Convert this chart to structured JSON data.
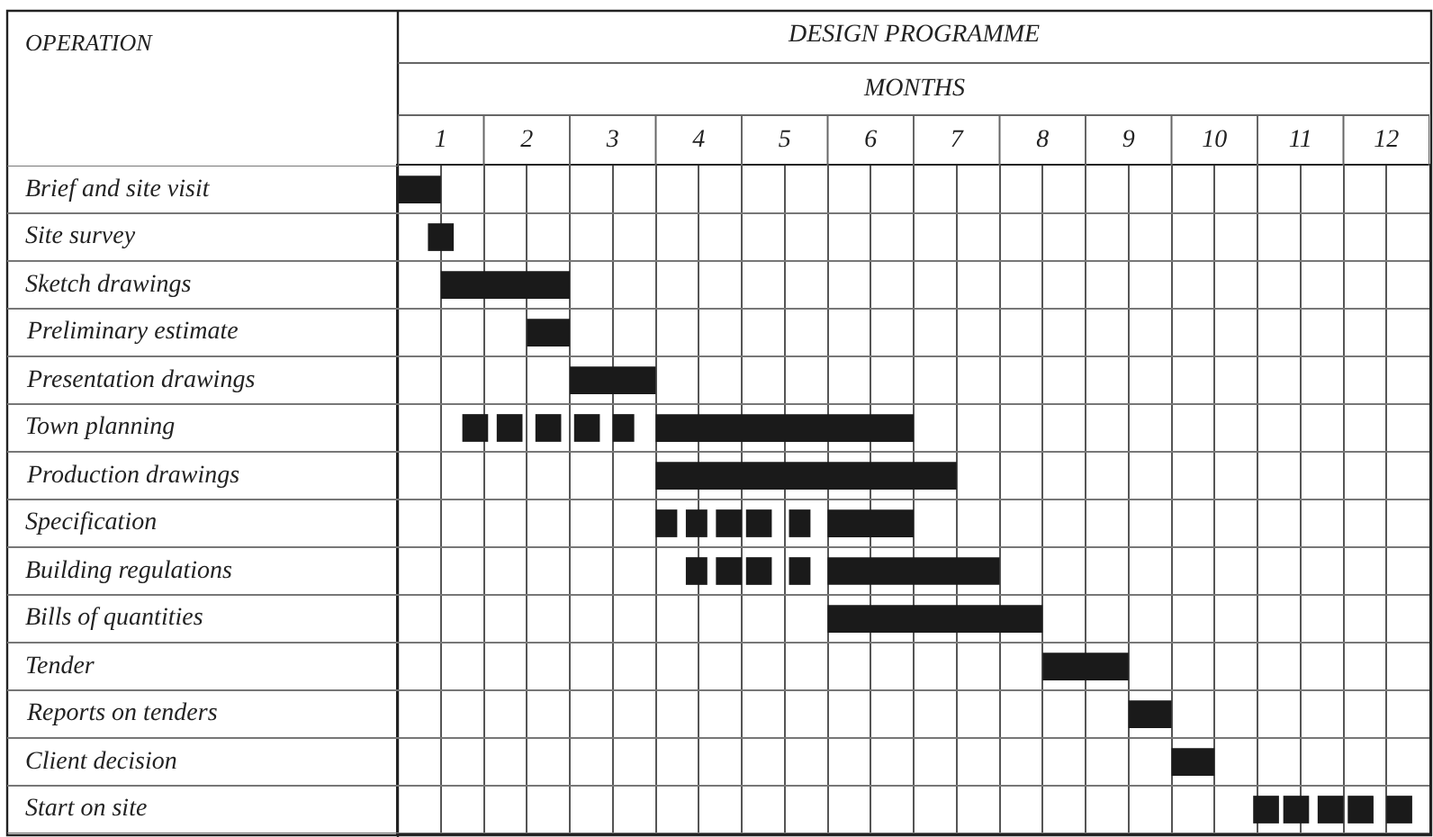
{
  "chart_data": {
    "type": "bar",
    "orientation": "horizontal",
    "title": "DESIGN PROGRAMME",
    "xlabel": "MONTHS",
    "ylabel": "OPERATION",
    "categories": [
      "Brief and site visit",
      "Site survey",
      "Sketch drawings",
      "Preliminary estimate",
      "Presentation drawings",
      "Town planning",
      "Production drawings",
      "Specification",
      "Building regulations",
      "Bills of quantities",
      "Tender",
      "Reports on tenders",
      "Client decision",
      "Start on site"
    ],
    "series": [
      {
        "color": "#1a1a1a",
        "base": [
          0,
          0.35,
          0.5,
          1.5,
          2,
          0.75,
          3,
          3,
          3.35,
          5,
          7.5,
          8.5,
          9,
          9.95
        ],
        "values": [
          0.5,
          0.3,
          1.5,
          0.5,
          1,
          0.3,
          3.5,
          0.25,
          0.25,
          2.5,
          1,
          0.5,
          0.5,
          0.3
        ]
      },
      {
        "color": "#1a1a1a",
        "base": [
          null,
          null,
          null,
          null,
          null,
          1.15,
          null,
          3.35,
          3.7,
          null,
          null,
          null,
          null,
          10.3
        ],
        "values": [
          null,
          null,
          null,
          null,
          null,
          0.3,
          null,
          0.25,
          0.3,
          null,
          null,
          null,
          null,
          0.3
        ]
      },
      {
        "color": "#1a1a1a",
        "base": [
          null,
          null,
          null,
          null,
          null,
          1.6,
          null,
          3.7,
          4.05,
          null,
          null,
          null,
          null,
          10.7
        ],
        "values": [
          null,
          null,
          null,
          null,
          null,
          0.3,
          null,
          0.3,
          0.3,
          null,
          null,
          null,
          null,
          0.3
        ]
      },
      {
        "color": "#1a1a1a",
        "base": [
          null,
          null,
          null,
          null,
          null,
          2.05,
          null,
          4.05,
          4.55,
          null,
          null,
          null,
          null,
          11.05
        ],
        "values": [
          null,
          null,
          null,
          null,
          null,
          0.3,
          null,
          0.3,
          0.25,
          null,
          null,
          null,
          null,
          0.3
        ]
      },
      {
        "color": "#1a1a1a",
        "base": [
          null,
          null,
          null,
          null,
          null,
          2.5,
          null,
          4.55,
          5,
          null,
          null,
          null,
          null,
          11.5
        ],
        "values": [
          null,
          null,
          null,
          null,
          null,
          0.25,
          null,
          0.25,
          2,
          null,
          null,
          null,
          null,
          0.3
        ]
      },
      {
        "color": "#1a1a1a",
        "base": [
          null,
          null,
          null,
          null,
          null,
          3,
          null,
          5,
          null,
          null,
          null,
          null,
          null,
          null
        ],
        "values": [
          null,
          null,
          null,
          null,
          null,
          3,
          null,
          1,
          null,
          null,
          null,
          null,
          null,
          null
        ]
      }
    ],
    "xlim": [
      0,
      12
    ],
    "xticks": [
      {
        "value": 0,
        "label": null
      },
      {
        "value": 0.5,
        "label": "1"
      },
      {
        "value": 1,
        "label": null
      },
      {
        "value": 1.5,
        "label": "2"
      },
      {
        "value": 2,
        "label": null
      },
      {
        "value": 2.5,
        "label": "3"
      },
      {
        "value": 3,
        "label": null
      },
      {
        "value": 3.5,
        "label": "4"
      },
      {
        "value": 4,
        "label": null
      },
      {
        "value": 4.5,
        "label": "5"
      },
      {
        "value": 5,
        "label": null
      },
      {
        "value": 5.5,
        "label": "6"
      },
      {
        "value": 6,
        "label": null
      },
      {
        "value": 6.5,
        "label": "7"
      },
      {
        "value": 7,
        "label": null
      },
      {
        "value": 7.5,
        "label": "8"
      },
      {
        "value": 8,
        "label": null
      },
      {
        "value": 8.5,
        "label": "9"
      },
      {
        "value": 9,
        "label": null
      },
      {
        "value": 9.5,
        "label": "10"
      },
      {
        "value": 10,
        "label": null
      },
      {
        "value": 10.5,
        "label": "11"
      },
      {
        "value": 11,
        "label": null
      },
      {
        "value": 11.5,
        "label": "12"
      },
      {
        "value": 12,
        "label": null
      }
    ],
    "grid": true
  }
}
